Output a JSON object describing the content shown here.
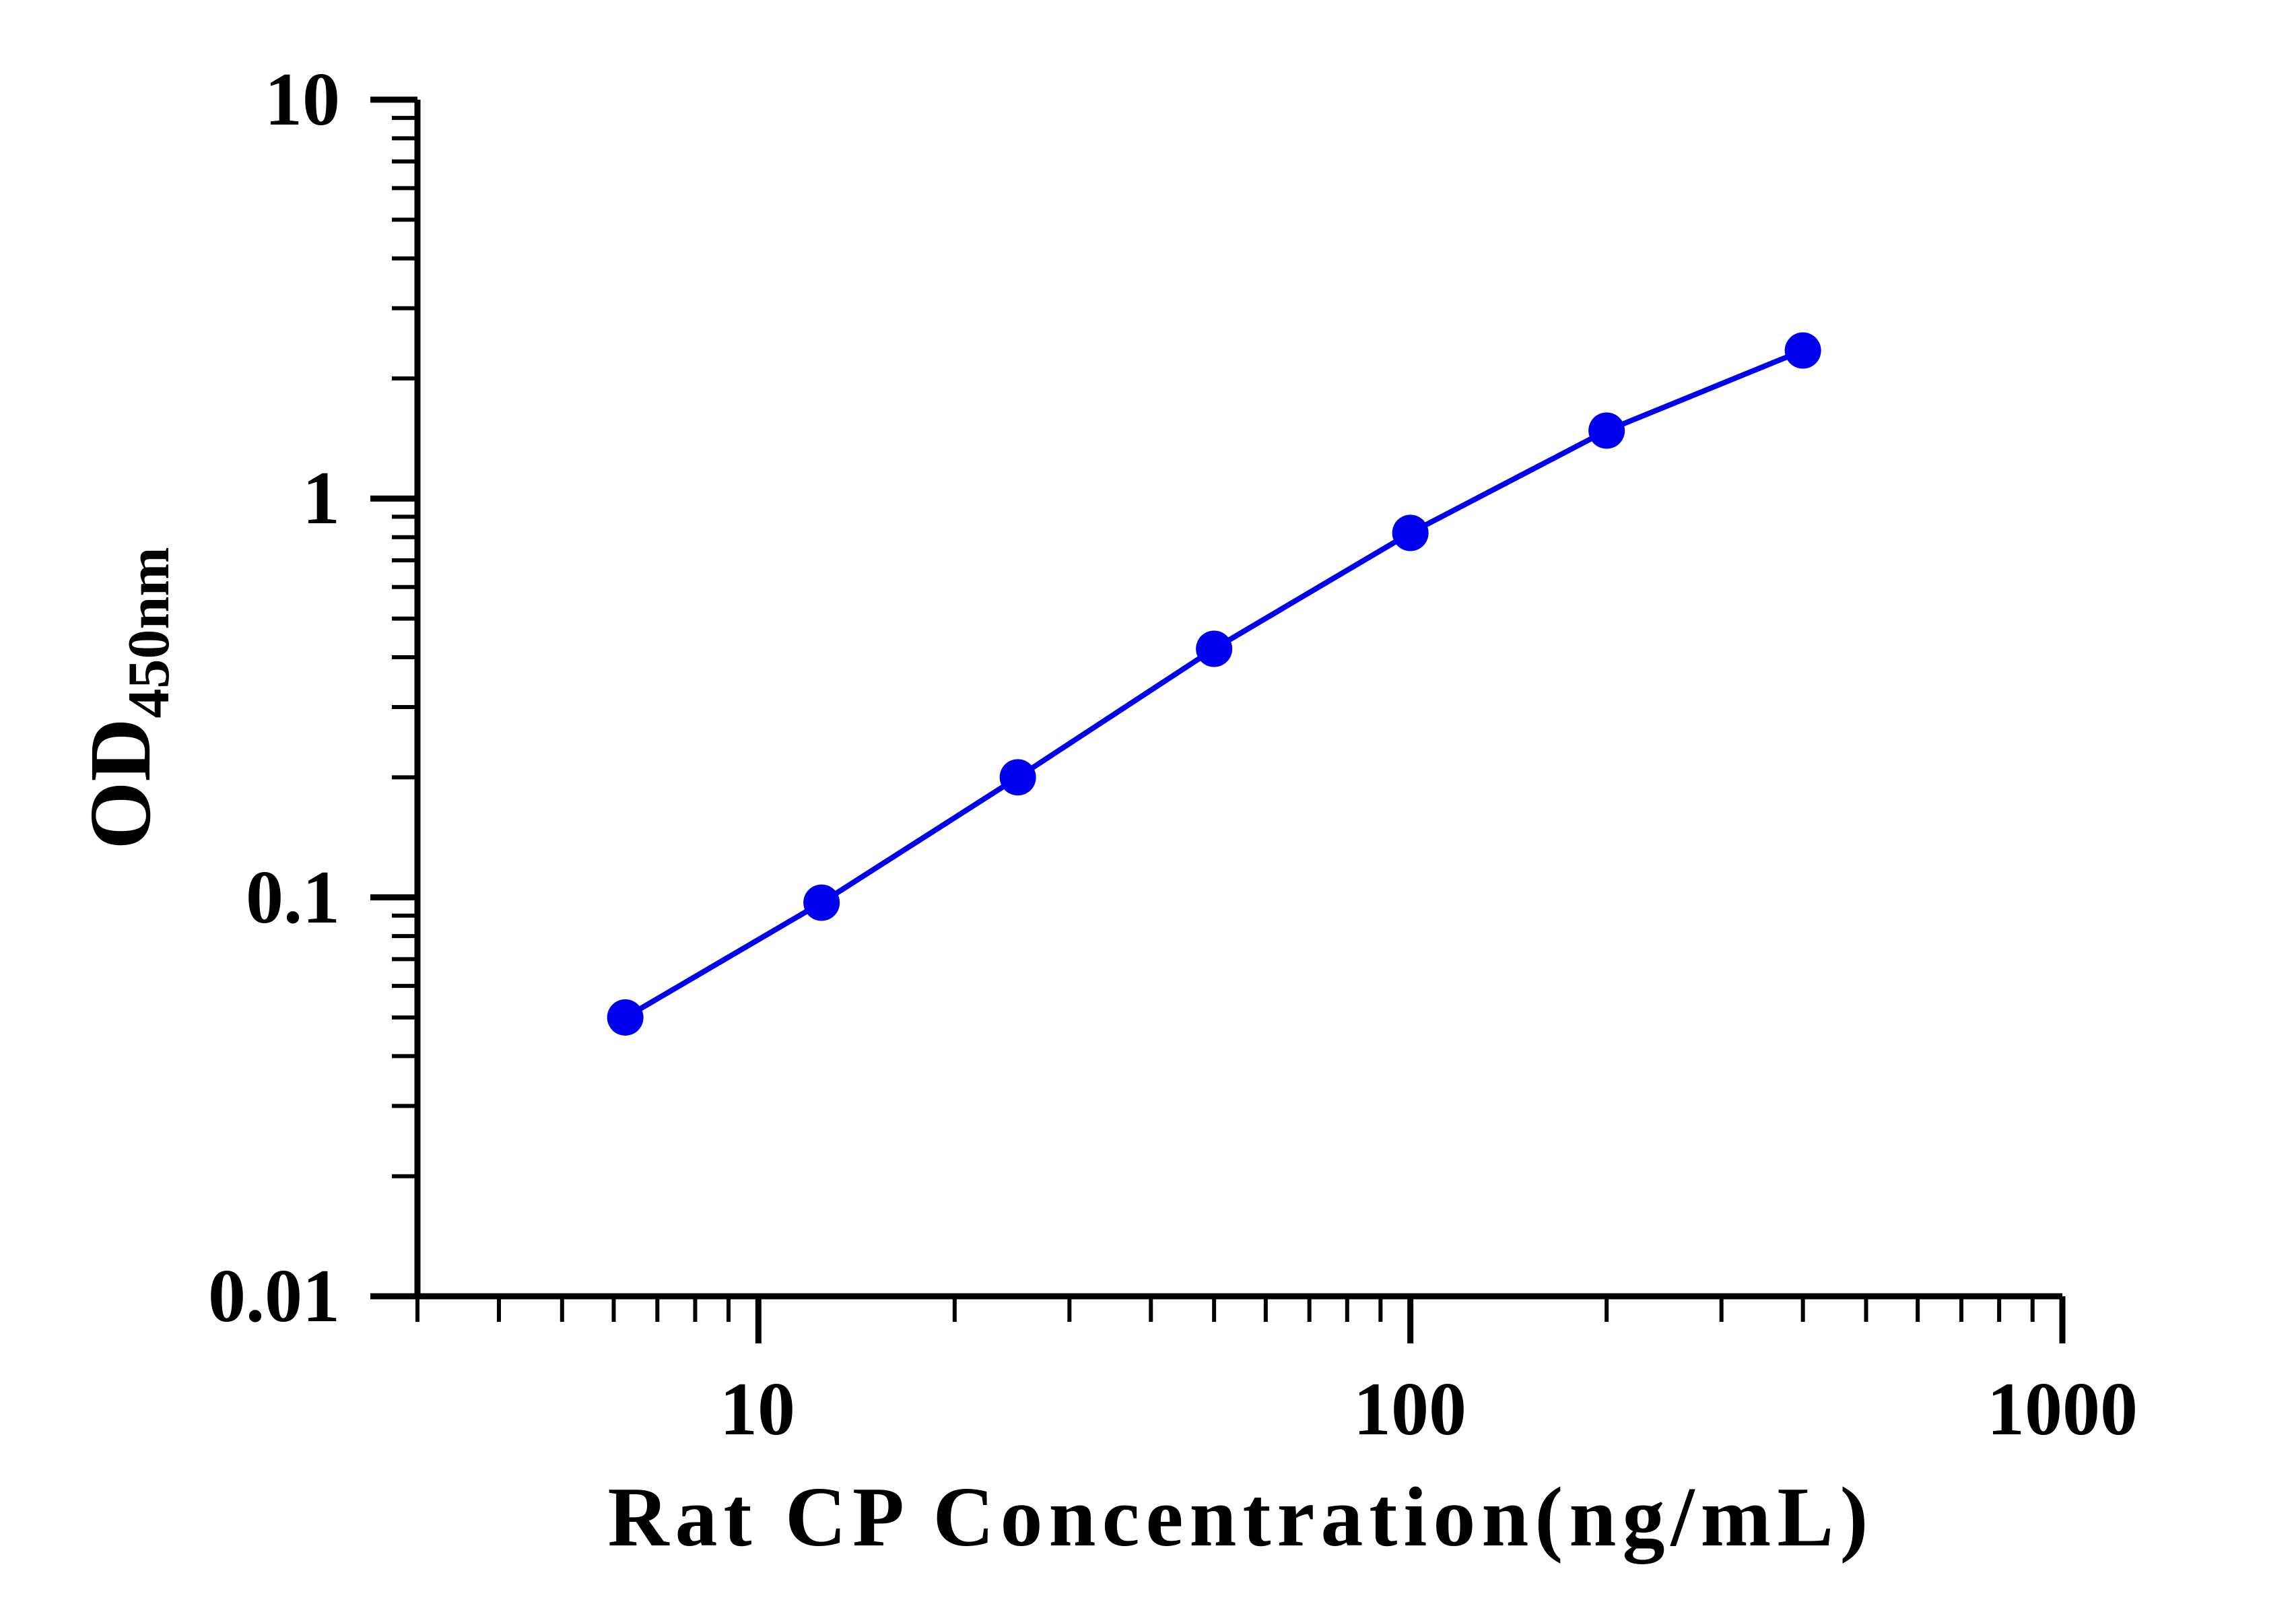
{
  "chart_data": {
    "type": "line",
    "title": "",
    "xlabel": "Rat CP Concentration(ng/mL)",
    "ylabel": {
      "main": "OD",
      "subscript": "450nm"
    },
    "x_scale": "log",
    "y_scale": "log",
    "xlim": [
      3,
      1000
    ],
    "ylim": [
      0.01,
      10
    ],
    "x_tick_labels": [
      "10",
      "100",
      "1000"
    ],
    "y_tick_labels": [
      "0.01",
      "0.1",
      "1",
      "10"
    ],
    "grid": false,
    "legend": "none",
    "series": [
      {
        "color": "#0000ee",
        "marker": "circle",
        "points": [
          {
            "x": 6.25,
            "y": 0.05
          },
          {
            "x": 12.5,
            "y": 0.097
          },
          {
            "x": 25,
            "y": 0.2
          },
          {
            "x": 50,
            "y": 0.42
          },
          {
            "x": 100,
            "y": 0.82
          },
          {
            "x": 200,
            "y": 1.48
          },
          {
            "x": 400,
            "y": 2.35
          }
        ]
      }
    ]
  }
}
